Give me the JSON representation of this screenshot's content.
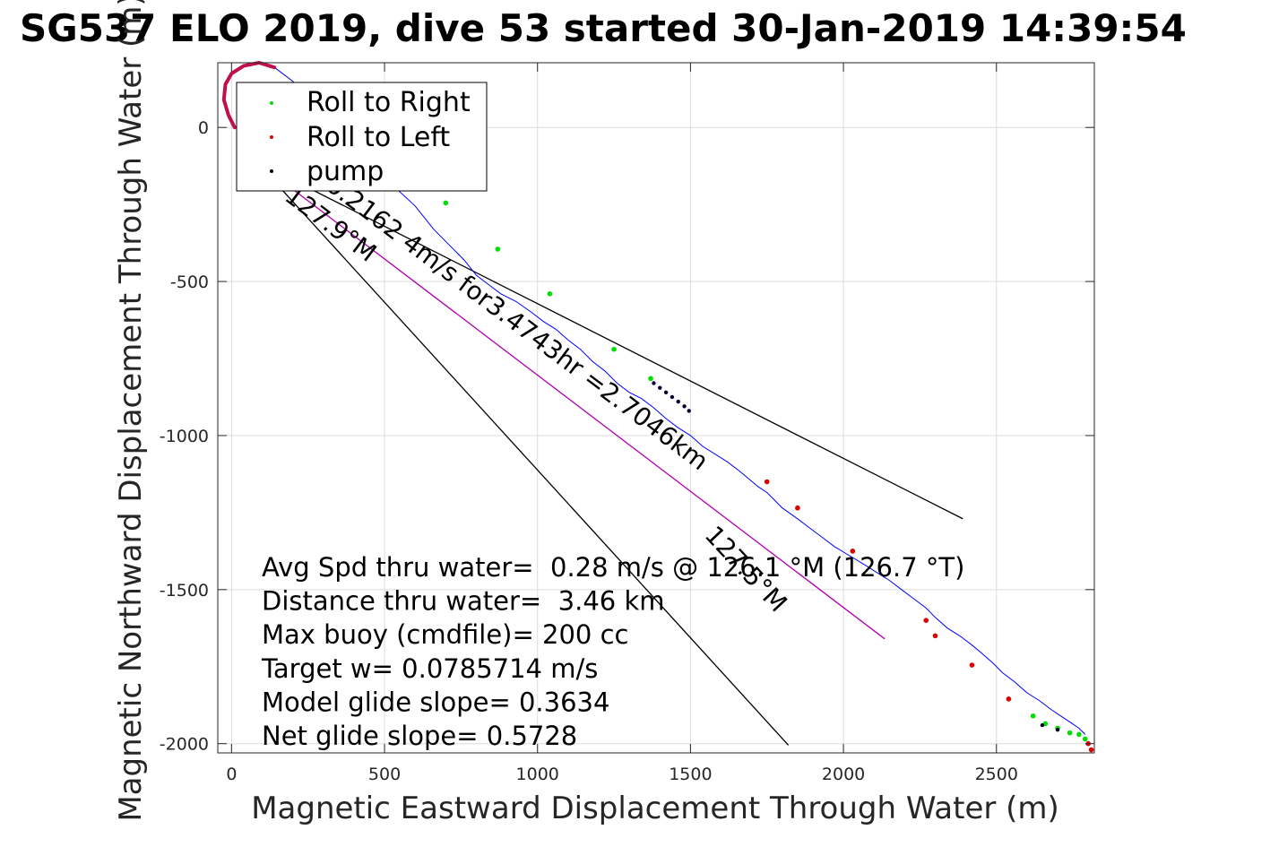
{
  "chart_data": {
    "type": "scatter",
    "title": "SG537 ELO 2019, dive 53 started 30-Jan-2019 14:39:54",
    "xlabel": "Magnetic Eastward Displacement Through Water (m)",
    "ylabel": "Magnetic Northward Displacement Through Water (m)",
    "xlim": [
      -45,
      2820
    ],
    "ylim": [
      -2030,
      210
    ],
    "xticks": [
      0,
      500,
      1000,
      1500,
      2000,
      2500
    ],
    "yticks": [
      0,
      -500,
      -1000,
      -1500,
      -2000
    ],
    "xtick_labels": [
      "0",
      "500",
      "1000",
      "1500",
      "2000",
      "2500"
    ],
    "ytick_labels": [
      "0",
      "-500",
      "-1000",
      "-1500",
      "-2000"
    ],
    "grid": true,
    "legend_position": "top-left",
    "legend": [
      {
        "label": "Roll to Right",
        "color": "#00dd00"
      },
      {
        "label": "Roll to Left",
        "color": "#dd0000"
      },
      {
        "label": "pump",
        "color": "#000000"
      }
    ],
    "track": {
      "color": "#0000ff",
      "points": [
        [
          140,
          195
        ],
        [
          200,
          150
        ],
        [
          260,
          90
        ],
        [
          320,
          40
        ],
        [
          370,
          -5
        ],
        [
          420,
          -60
        ],
        [
          470,
          -130
        ],
        [
          540,
          -200
        ],
        [
          600,
          -255
        ],
        [
          660,
          -330
        ],
        [
          710,
          -380
        ],
        [
          760,
          -430
        ],
        [
          800,
          -480
        ],
        [
          840,
          -510
        ],
        [
          880,
          -540
        ],
        [
          930,
          -565
        ],
        [
          980,
          -600
        ],
        [
          1020,
          -630
        ],
        [
          1060,
          -655
        ],
        [
          1100,
          -690
        ],
        [
          1140,
          -720
        ],
        [
          1180,
          -760
        ],
        [
          1220,
          -790
        ],
        [
          1260,
          -830
        ],
        [
          1300,
          -860
        ],
        [
          1340,
          -880
        ],
        [
          1380,
          -910
        ],
        [
          1420,
          -945
        ],
        [
          1460,
          -975
        ],
        [
          1500,
          -1000
        ],
        [
          1540,
          -1035
        ],
        [
          1580,
          -1060
        ],
        [
          1620,
          -1085
        ],
        [
          1660,
          -1115
        ],
        [
          1690,
          -1140
        ],
        [
          1720,
          -1165
        ],
        [
          1750,
          -1185
        ],
        [
          1770,
          -1205
        ],
        [
          1800,
          -1235
        ],
        [
          1850,
          -1270
        ],
        [
          1890,
          -1300
        ],
        [
          1930,
          -1330
        ],
        [
          1970,
          -1360
        ],
        [
          2020,
          -1390
        ],
        [
          2070,
          -1420
        ],
        [
          2110,
          -1445
        ],
        [
          2150,
          -1470
        ],
        [
          2190,
          -1500
        ],
        [
          2230,
          -1530
        ],
        [
          2270,
          -1560
        ],
        [
          2300,
          -1590
        ],
        [
          2340,
          -1625
        ],
        [
          2380,
          -1650
        ],
        [
          2420,
          -1680
        ],
        [
          2450,
          -1705
        ],
        [
          2490,
          -1740
        ],
        [
          2520,
          -1770
        ],
        [
          2560,
          -1800
        ],
        [
          2600,
          -1835
        ],
        [
          2640,
          -1860
        ],
        [
          2680,
          -1890
        ],
        [
          2710,
          -1910
        ],
        [
          2740,
          -1930
        ],
        [
          2770,
          -1950
        ],
        [
          2790,
          -1970
        ]
      ]
    },
    "loop_start": {
      "color": "#c0104a",
      "points": [
        [
          10,
          0
        ],
        [
          -10,
          40
        ],
        [
          -25,
          90
        ],
        [
          -20,
          140
        ],
        [
          0,
          175
        ],
        [
          40,
          200
        ],
        [
          90,
          210
        ],
        [
          140,
          195
        ]
      ]
    },
    "roll_right_points": [
      [
        700,
        -245
      ],
      [
        870,
        -395
      ],
      [
        1040,
        -540
      ],
      [
        1250,
        -720
      ],
      [
        1370,
        -815
      ],
      [
        2620,
        -1910
      ],
      [
        2660,
        -1935
      ],
      [
        2700,
        -1950
      ],
      [
        2740,
        -1965
      ],
      [
        2770,
        -1970
      ],
      [
        2790,
        -1985
      ]
    ],
    "roll_left_points": [
      [
        1750,
        -1150
      ],
      [
        1850,
        -1235
      ],
      [
        2030,
        -1375
      ],
      [
        2270,
        -1600
      ],
      [
        2300,
        -1650
      ],
      [
        2420,
        -1745
      ],
      [
        2540,
        -1855
      ],
      [
        2800,
        -2000
      ],
      [
        2810,
        -2020
      ]
    ],
    "pump_points": [
      [
        1380,
        -830
      ],
      [
        1400,
        -845
      ],
      [
        1420,
        -860
      ],
      [
        1440,
        -875
      ],
      [
        1460,
        -890
      ],
      [
        1480,
        -905
      ],
      [
        1495,
        -920
      ],
      [
        2650,
        -1940
      ],
      [
        2700,
        -1955
      ]
    ],
    "reference_lines": [
      {
        "color": "#000000",
        "points": [
          [
            80,
            -110
          ],
          [
            2390,
            -1270
          ]
        ]
      },
      {
        "color": "#000000",
        "points": [
          [
            80,
            -110
          ],
          [
            1820,
            -2005
          ]
        ]
      },
      {
        "color": "#b000b0",
        "points": [
          [
            80,
            -110
          ],
          [
            2135,
            -1660
          ]
        ]
      }
    ],
    "annotations": [
      {
        "text": "0.2162 4m/s for3.4743hr =2.7046km"
      },
      {
        "text": "127.9°M"
      },
      {
        "text": "127.5°M"
      }
    ],
    "stats": [
      "Avg Spd thru water=  0.28 m/s @ 126.1 °M (126.7 °T)",
      "Distance thru water=  3.46 km",
      "Max buoy (cmdfile)= 200 cc",
      "Target w= 0.0785714 m/s",
      "Model glide slope= 0.3634",
      "Net glide slope= 0.5728"
    ]
  }
}
